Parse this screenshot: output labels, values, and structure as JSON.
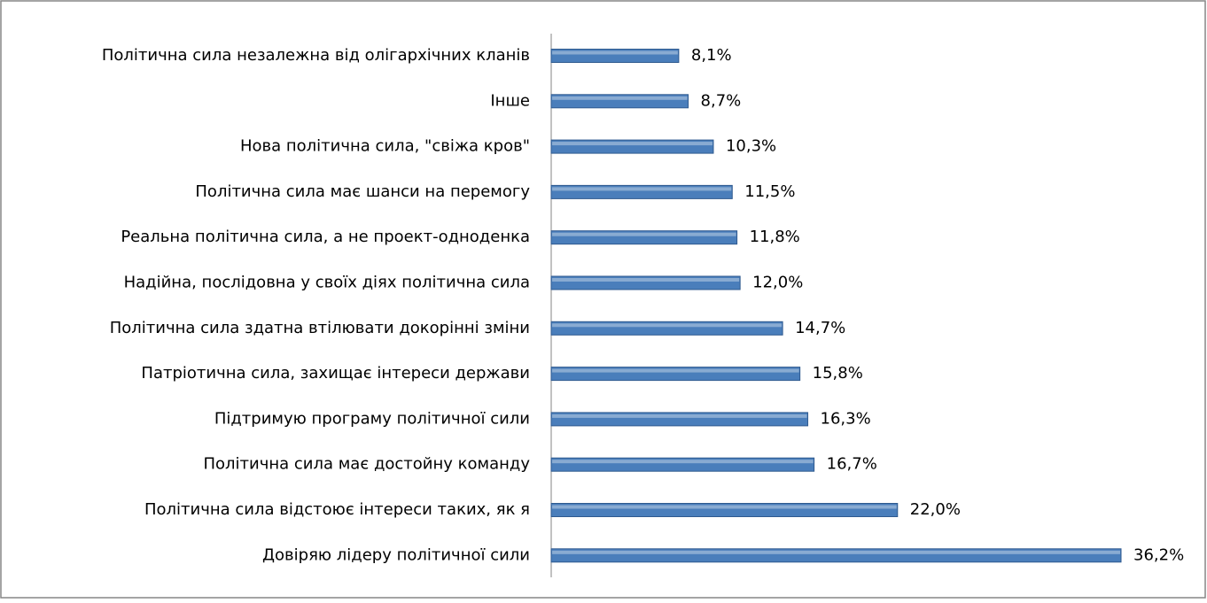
{
  "chart_data": {
    "type": "bar",
    "orientation": "horizontal",
    "color": "#4a7ebb",
    "categories": [
      "Політична сила незалежна від олігархічних кланів",
      "Інше",
      "Нова політична сила, \"свіжа кров\"",
      "Політична сила має шанси на перемогу",
      "Реальна політична сила, а не проект-одноденка",
      "Надійна, послідовна у своїх діях політична сила",
      "Політична сила здатна втілювати докорінні зміни",
      "Патріотична сила, захищає інтереси держави",
      "Підтримую програму політичної сили",
      "Політична сила має достойну команду",
      "Політична сила відстоює інтереси таких, як я",
      "Довіряю лідеру політичної сили"
    ],
    "values": [
      8.1,
      8.7,
      10.3,
      11.5,
      11.8,
      12.0,
      14.7,
      15.8,
      16.3,
      16.7,
      22.0,
      36.2
    ],
    "value_labels": [
      "8,1%",
      "8,7%",
      "10,3%",
      "11,5%",
      "11,8%",
      "12,0%",
      "14,7%",
      "15,8%",
      "16,3%",
      "16,7%",
      "22,0%",
      "36,2%"
    ]
  }
}
